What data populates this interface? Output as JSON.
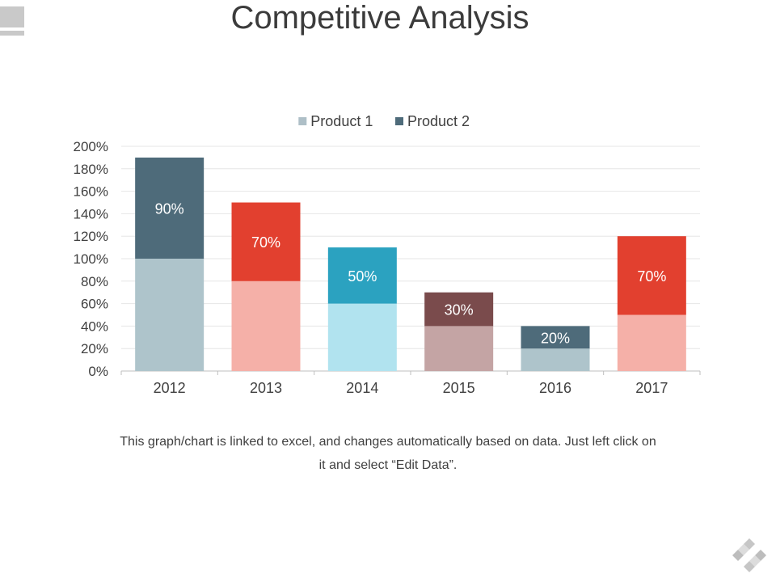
{
  "slide": {
    "title": "Competitive Analysis",
    "caption_line1": "This graph/chart is linked to excel, and changes automatically based on data. Just left click on",
    "caption_line2": "it and select “Edit Data”."
  },
  "chart_data": {
    "type": "bar",
    "stacked": true,
    "title": "",
    "xlabel": "",
    "ylabel": "",
    "categories": [
      "2012",
      "2013",
      "2014",
      "2015",
      "2016",
      "2017"
    ],
    "series": [
      {
        "name": "Product 1",
        "legend_color": "#aebfc7",
        "values": [
          100,
          80,
          60,
          40,
          20,
          50
        ],
        "colors": [
          "#aec4cb",
          "#f5b0a8",
          "#b1e3ef",
          "#c4a4a4",
          "#aec4cb",
          "#f5b0a8"
        ]
      },
      {
        "name": "Product 2",
        "legend_color": "#4e6b7a",
        "values": [
          90,
          70,
          50,
          30,
          20,
          70
        ],
        "colors": [
          "#4e6b7a",
          "#e2402f",
          "#2ba2c0",
          "#7a4b4c",
          "#4e6b7a",
          "#e2402f"
        ],
        "labels": [
          "90%",
          "70%",
          "50%",
          "30%",
          "20%",
          "70%"
        ]
      }
    ],
    "ylim": [
      0,
      200
    ],
    "y_ticks": [
      0,
      20,
      40,
      60,
      80,
      100,
      120,
      140,
      160,
      180,
      200
    ],
    "y_tick_labels": [
      "0%",
      "20%",
      "40%",
      "60%",
      "80%",
      "100%",
      "120%",
      "140%",
      "160%",
      "180%",
      "200%"
    ],
    "grid": true,
    "legend_position": "top-center"
  }
}
